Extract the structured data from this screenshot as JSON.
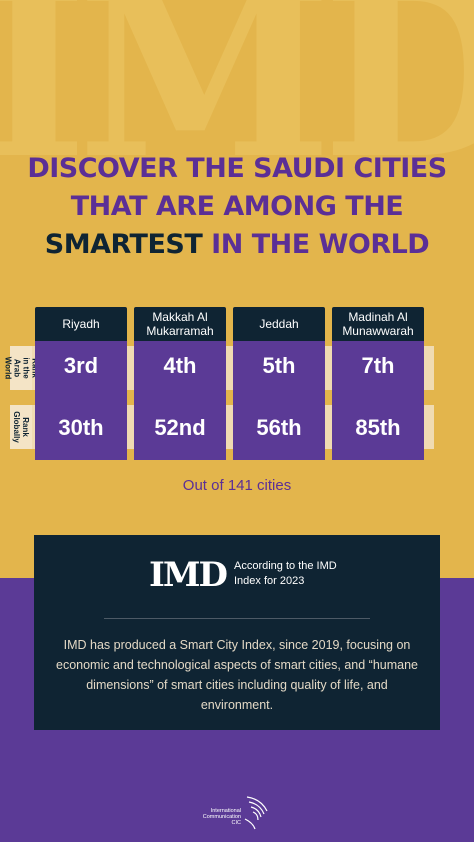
{
  "watermark": "IMD",
  "headline": {
    "line1": "DISCOVER THE SAUDI CITIES",
    "line2": "THAT ARE AMONG THE",
    "line3_dark": "SMARTEST",
    "line3_rest": " IN THE WORLD"
  },
  "row_labels": {
    "arab": "Rank in the Arab World",
    "global": "Rank Globally"
  },
  "cities": [
    {
      "name": "Riyadh",
      "arab_rank": "3rd",
      "global_rank": "30th"
    },
    {
      "name": "Makkah Al Mukarramah",
      "arab_rank": "4th",
      "global_rank": "52nd"
    },
    {
      "name": "Jeddah",
      "arab_rank": "5th",
      "global_rank": "56th"
    },
    {
      "name": "Madinah Al Munawwarah",
      "arab_rank": "7th",
      "global_rank": "85th"
    }
  ],
  "out_of": "Out of 141 cities",
  "info": {
    "logo": "IMD",
    "according": "According to the IMD Index for 2023",
    "description": "IMD has produced a Smart City Index, since 2019, focusing on economic and technological aspects of smart cities, and “humane dimensions” of smart cities including quality of life, and environment."
  },
  "footer": {
    "org": "International Communication CIC"
  },
  "colors": {
    "gold": "#e3b54c",
    "purple": "#5b3a96",
    "navy": "#0f2433"
  }
}
